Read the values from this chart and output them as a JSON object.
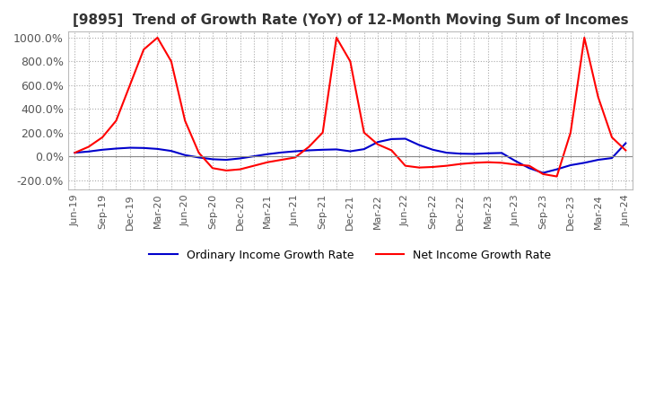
{
  "title": "[9895]  Trend of Growth Rate (YoY) of 12-Month Moving Sum of Incomes",
  "background_color": "#ffffff",
  "grid_color": "#aaaaaa",
  "ordinary_color": "#0000cc",
  "net_color": "#ff0000",
  "legend_ordinary": "Ordinary Income Growth Rate",
  "legend_net": "Net Income Growth Rate",
  "ylim": [
    -280,
    1050
  ],
  "yticks": [
    -200,
    0,
    200,
    400,
    600,
    800,
    1000
  ],
  "ytick_labels": [
    "-200.0%",
    "0.0%",
    "200.0%",
    "400.0%",
    "600.0%",
    "800.0%",
    "1000.0%"
  ],
  "x_labels": [
    "Jun-19",
    "",
    "Sep-19",
    "",
    "Dec-19",
    "",
    "Mar-20",
    "",
    "Jun-20",
    "",
    "Sep-20",
    "",
    "Dec-20",
    "",
    "Mar-21",
    "",
    "Jun-21",
    "",
    "Sep-21",
    "",
    "Dec-21",
    "",
    "Mar-22",
    "",
    "Jun-22",
    "",
    "Sep-22",
    "",
    "Dec-22",
    "",
    "Mar-23",
    "",
    "Jun-23",
    "",
    "Sep-23",
    "",
    "Dec-23",
    "",
    "Mar-24",
    "",
    "Jun-24"
  ],
  "ordinary_values": [
    30,
    40,
    55,
    65,
    72,
    70,
    62,
    45,
    10,
    -10,
    -25,
    -30,
    -18,
    0,
    18,
    32,
    42,
    50,
    55,
    58,
    42,
    60,
    120,
    145,
    148,
    95,
    55,
    30,
    22,
    20,
    25,
    28,
    -40,
    -100,
    -140,
    -110,
    -75,
    -55,
    -30,
    -15,
    110
  ],
  "net_values": [
    30,
    80,
    160,
    300,
    600,
    900,
    1000,
    800,
    300,
    30,
    -100,
    -120,
    -110,
    -80,
    -50,
    -30,
    -10,
    80,
    200,
    1000,
    800,
    200,
    100,
    50,
    -80,
    -95,
    -90,
    -80,
    -65,
    -55,
    -50,
    -55,
    -70,
    -80,
    -150,
    -170,
    200,
    1000,
    500,
    160,
    50
  ]
}
